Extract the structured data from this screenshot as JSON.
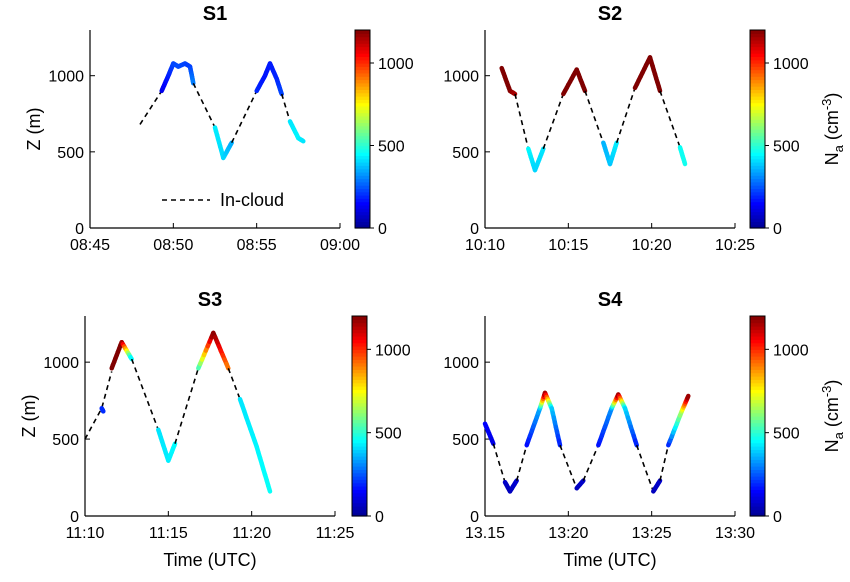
{
  "figure": {
    "x_axis_label": "Time (UTC)",
    "y_axis_label": "Z (m)",
    "colorbar_label": "N",
    "colorbar_label_sub": "a",
    "colorbar_label_unit": " (cm",
    "colorbar_label_unit_sup": "-3",
    "colorbar_label_close": ")",
    "legend_label": "In-cloud",
    "colormap": [
      "#00008f",
      "#0000ff",
      "#0080ff",
      "#00ffff",
      "#80ff80",
      "#ffff00",
      "#ff8000",
      "#ff0000",
      "#800000"
    ]
  },
  "chart_data": [
    {
      "type": "line",
      "title": "S1",
      "xlim": [
        "08:45",
        "09:00"
      ],
      "x_ticks": [
        "08:45",
        "08:50",
        "08:55",
        "09:00"
      ],
      "ylim": [
        0,
        1300
      ],
      "y_ticks": [
        0,
        500,
        1000
      ],
      "colorbar": {
        "range": [
          0,
          1200
        ],
        "ticks": [
          0,
          500,
          1000
        ]
      },
      "legend": {
        "entry": "In-cloud",
        "style": "dashed",
        "placement": "bottom"
      },
      "in_cloud": [
        [
          "08:48.0",
          680
        ],
        [
          "08:49.3",
          900
        ]
      ],
      "series": [
        {
          "points": [
            [
              "08:49.3",
              900
            ],
            [
              "08:49.7",
              1000
            ],
            [
              "08:50.0",
              1080
            ],
            [
              "08:50.3",
              1060
            ],
            [
              "08:50.7",
              1080
            ],
            [
              "08:51.0",
              1060
            ],
            [
              "08:51.2",
              950
            ]
          ],
          "na": [
            120,
            180,
            230,
            240,
            230,
            220,
            300
          ]
        },
        {
          "points": [
            [
              "08:51.2",
              950
            ],
            [
              "08:52.5",
              660
            ]
          ],
          "style": "dashed"
        },
        {
          "points": [
            [
              "08:52.5",
              660
            ],
            [
              "08:53.0",
              460
            ],
            [
              "08:53.5",
              560
            ]
          ],
          "na": [
            430,
            410,
            350
          ]
        },
        {
          "points": [
            [
              "08:53.5",
              560
            ],
            [
              "08:55.0",
              900
            ]
          ],
          "style": "dashed"
        },
        {
          "points": [
            [
              "08:55.0",
              900
            ],
            [
              "08:55.5",
              1000
            ],
            [
              "08:55.8",
              1080
            ],
            [
              "08:56.2",
              980
            ],
            [
              "08:56.5",
              880
            ]
          ],
          "na": [
            200,
            170,
            180,
            190,
            230
          ]
        },
        {
          "points": [
            [
              "08:56.5",
              880
            ],
            [
              "08:57.0",
              700
            ]
          ],
          "style": "dashed"
        },
        {
          "points": [
            [
              "08:57.0",
              700
            ],
            [
              "08:57.5",
              590
            ],
            [
              "08:57.8",
              570
            ]
          ],
          "na": [
            420,
            440,
            420
          ]
        }
      ]
    },
    {
      "type": "line",
      "title": "S2",
      "xlim": [
        "10:10",
        "10:25"
      ],
      "x_ticks": [
        "10:10",
        "10:15",
        "10:20",
        "10:25"
      ],
      "ylim": [
        0,
        1300
      ],
      "y_ticks": [
        0,
        500,
        1000
      ],
      "colorbar": {
        "range": [
          0,
          1200
        ],
        "ticks": [
          0,
          500,
          1000
        ]
      },
      "series": [
        {
          "points": [
            [
              "10:11.0",
              1050
            ],
            [
              "10:11.5",
              900
            ],
            [
              "10:11.8",
              880
            ]
          ],
          "na": [
            1200,
            1200,
            1150
          ]
        },
        {
          "points": [
            [
              "10:11.8",
              880
            ],
            [
              "10:12.6",
              520
            ]
          ],
          "style": "dashed"
        },
        {
          "points": [
            [
              "10:12.6",
              520
            ],
            [
              "10:13.0",
              380
            ],
            [
              "10:13.5",
              520
            ]
          ],
          "na": [
            450,
            400,
            420
          ]
        },
        {
          "points": [
            [
              "10:13.5",
              520
            ],
            [
              "10:14.7",
              880
            ]
          ],
          "style": "dashed"
        },
        {
          "points": [
            [
              "10:14.7",
              880
            ],
            [
              "10:15.5",
              1040
            ],
            [
              "10:16.0",
              900
            ]
          ],
          "na": [
            1200,
            1200,
            1200
          ]
        },
        {
          "points": [
            [
              "10:16.0",
              900
            ],
            [
              "10:17.1",
              560
            ]
          ],
          "style": "dashed"
        },
        {
          "points": [
            [
              "10:17.1",
              560
            ],
            [
              "10:17.5",
              420
            ],
            [
              "10:17.9",
              560
            ]
          ],
          "na": [
            360,
            380,
            430
          ]
        },
        {
          "points": [
            [
              "10:17.9",
              560
            ],
            [
              "10:19.0",
              920
            ]
          ],
          "style": "dashed"
        },
        {
          "points": [
            [
              "10:19.0",
              920
            ],
            [
              "10:19.9",
              1120
            ],
            [
              "10:20.5",
              900
            ]
          ],
          "na": [
            1200,
            1200,
            1200
          ]
        },
        {
          "points": [
            [
              "10:20.5",
              900
            ],
            [
              "10:21.7",
              530
            ]
          ],
          "style": "dashed"
        },
        {
          "points": [
            [
              "10:21.7",
              530
            ],
            [
              "10:22.0",
              420
            ]
          ],
          "na": [
            460,
            470
          ]
        }
      ]
    },
    {
      "type": "line",
      "title": "S3",
      "xlim": [
        "11:10",
        "11:25"
      ],
      "x_ticks": [
        "11:10",
        "11:15",
        "11:20",
        "11:25"
      ],
      "ylim": [
        0,
        1300
      ],
      "y_ticks": [
        0,
        500,
        1000
      ],
      "colorbar": {
        "range": [
          0,
          1200
        ],
        "ticks": [
          0,
          500,
          1000
        ]
      },
      "in_cloud": [
        [
          "11:10.0",
          500
        ],
        [
          "11:11.0",
          700
        ],
        [
          "11:11.6",
          940
        ]
      ],
      "series": [
        {
          "points": [
            [
              "11:11.0",
              700
            ],
            [
              "11:11.1",
              680
            ]
          ],
          "na": [
            200,
            200
          ]
        },
        {
          "points": [
            [
              "11:11.6",
              960
            ],
            [
              "11:12.2",
              1130
            ],
            [
              "11:12.8",
              1020
            ]
          ],
          "na": [
            1200,
            1200,
            400
          ]
        },
        {
          "points": [
            [
              "11:12.8",
              1020
            ],
            [
              "11:14.4",
              560
            ]
          ],
          "style": "dashed"
        },
        {
          "points": [
            [
              "11:14.4",
              560
            ],
            [
              "11:15.0",
              360
            ],
            [
              "11:15.4",
              470
            ]
          ],
          "na": [
            420,
            430,
            450
          ]
        },
        {
          "points": [
            [
              "11:15.4",
              470
            ],
            [
              "11:16.8",
              960
            ]
          ],
          "style": "dashed"
        },
        {
          "points": [
            [
              "11:16.8",
              960
            ],
            [
              "11:17.7",
              1190
            ],
            [
              "11:18.6",
              960
            ]
          ],
          "na": [
            500,
            1200,
            900
          ]
        },
        {
          "points": [
            [
              "11:18.6",
              960
            ],
            [
              "11:19.3",
              760
            ]
          ],
          "style": "dashed"
        },
        {
          "points": [
            [
              "11:19.3",
              760
            ],
            [
              "11:20.3",
              450
            ],
            [
              "11:21.1",
              160
            ]
          ],
          "na": [
            420,
            440,
            460
          ]
        }
      ]
    },
    {
      "type": "line",
      "title": "S4",
      "xlim": [
        "13:15",
        "13:30"
      ],
      "x_ticks": [
        "13.15",
        "13:20",
        "13:25",
        "13:30"
      ],
      "ylim": [
        0,
        1300
      ],
      "y_ticks": [
        0,
        500,
        1000
      ],
      "colorbar": {
        "range": [
          0,
          1200
        ],
        "ticks": [
          0,
          500,
          1000
        ]
      },
      "series": [
        {
          "points": [
            [
              "13:15.0",
              600
            ],
            [
              "13:15.5",
              470
            ]
          ],
          "na": [
            150,
            120
          ]
        },
        {
          "points": [
            [
              "13:15.5",
              470
            ],
            [
              "13:16.2",
              220
            ]
          ],
          "style": "dashed"
        },
        {
          "points": [
            [
              "13:16.2",
              220
            ],
            [
              "13:16.5",
              160
            ],
            [
              "13:16.9",
              230
            ]
          ],
          "na": [
            80,
            60,
            90
          ]
        },
        {
          "points": [
            [
              "13:16.9",
              230
            ],
            [
              "13:17.5",
              460
            ]
          ],
          "style": "dashed"
        },
        {
          "points": [
            [
              "13:17.5",
              460
            ],
            [
              "13:18.3",
              700
            ],
            [
              "13:18.6",
              800
            ],
            [
              "13:19.0",
              700
            ],
            [
              "13:19.5",
              460
            ]
          ],
          "na": [
            150,
            350,
            1200,
            400,
            180
          ]
        },
        {
          "points": [
            [
              "13:19.5",
              460
            ],
            [
              "13:20.5",
              180
            ]
          ],
          "style": "dashed"
        },
        {
          "points": [
            [
              "13:20.5",
              180
            ],
            [
              "13:20.9",
              230
            ]
          ],
          "na": [
            60,
            80
          ]
        },
        {
          "points": [
            [
              "13:20.9",
              230
            ],
            [
              "13:21.8",
              460
            ]
          ],
          "style": "dashed"
        },
        {
          "points": [
            [
              "13:21.8",
              460
            ],
            [
              "13:22.6",
              700
            ],
            [
              "13:23.0",
              790
            ],
            [
              "13:23.4",
              700
            ],
            [
              "13:24.1",
              460
            ]
          ],
          "na": [
            160,
            320,
            1200,
            420,
            180
          ]
        },
        {
          "points": [
            [
              "13:24.1",
              460
            ],
            [
              "13:25.1",
              160
            ]
          ],
          "style": "dashed"
        },
        {
          "points": [
            [
              "13:25.1",
              160
            ],
            [
              "13:25.5",
              230
            ]
          ],
          "na": [
            60,
            80
          ]
        },
        {
          "points": [
            [
              "13:25.5",
              230
            ],
            [
              "13:26.0",
              460
            ]
          ],
          "style": "dashed"
        },
        {
          "points": [
            [
              "13:26.0",
              460
            ],
            [
              "13:26.8",
              680
            ],
            [
              "13:27.2",
              780
            ]
          ],
          "na": [
            170,
            650,
            1200
          ]
        }
      ]
    }
  ]
}
